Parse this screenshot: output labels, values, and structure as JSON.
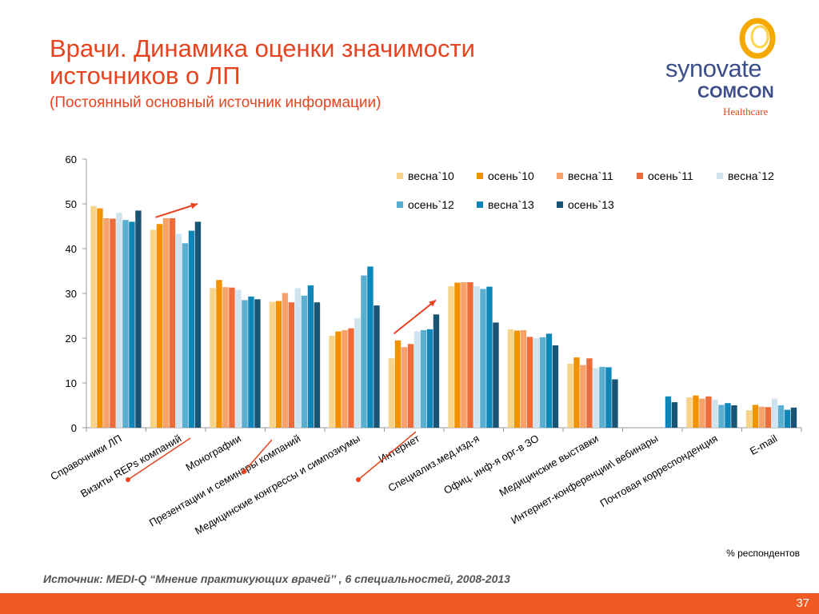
{
  "slide": {
    "title": "Врачи. Динамика оценки значимости источников о ЛП",
    "subtitle": "(Постоянный основный источник информации)",
    "logo": {
      "line1": "synovate",
      "line2": "COMCON",
      "line3": "Healthcare"
    },
    "unit_note": "% респондентов",
    "source": "Источник: MEDI-Q “Мнение практикующих врачей’’ , 6 специальностей,  2008-2013",
    "page_number": "37"
  },
  "colors": {
    "accent": "#e8431f",
    "footer": "#f15a22",
    "brand": "#3d4f8a",
    "series": [
      "#f8d48a",
      "#f39200",
      "#f6a26a",
      "#ee6b3a",
      "#cfe4ee",
      "#5aaed0",
      "#0e86b8",
      "#1a5474"
    ]
  },
  "chart_data": {
    "type": "bar",
    "categories": [
      "Справочники ЛП",
      "Визиты REPs компаний",
      "Монографии",
      "Презентации и семинары компаний",
      "Медицинские конгрессы и симпозиумы",
      "Интернет",
      "Специализ.мед.изд-я",
      "Офиц. инф-я орг-в ЗО",
      "Медицинские выставки",
      "Интернет-конференции\\ вебинары",
      "Почтовая корреспонденция",
      "E-mail"
    ],
    "series": [
      {
        "name": "весна`10",
        "values": [
          49.5,
          44.2,
          31.2,
          28.1,
          20.5,
          15.5,
          31.6,
          22.0,
          14.3,
          null,
          6.8,
          3.9
        ]
      },
      {
        "name": "осень`10",
        "values": [
          49.0,
          45.5,
          33.0,
          28.3,
          21.5,
          19.5,
          32.4,
          21.7,
          15.7,
          null,
          7.2,
          5.1
        ]
      },
      {
        "name": "весна`11",
        "values": [
          46.8,
          46.8,
          31.4,
          30.1,
          21.8,
          18.0,
          32.5,
          21.8,
          14.0,
          null,
          6.5,
          4.7
        ]
      },
      {
        "name": "осень`11",
        "values": [
          46.7,
          46.8,
          31.3,
          28.0,
          22.2,
          18.7,
          32.5,
          20.3,
          15.5,
          null,
          7.0,
          4.6
        ]
      },
      {
        "name": "весна`12",
        "values": [
          48.0,
          43.3,
          30.8,
          31.2,
          24.5,
          21.5,
          31.6,
          20.0,
          13.3,
          null,
          6.3,
          6.5
        ]
      },
      {
        "name": "осень`12",
        "values": [
          46.4,
          41.2,
          28.5,
          29.5,
          34.0,
          21.8,
          31.0,
          20.2,
          13.6,
          null,
          5.1,
          5.0
        ]
      },
      {
        "name": "весна`13",
        "values": [
          46.0,
          44.0,
          29.3,
          31.8,
          36.0,
          22.0,
          31.5,
          21.0,
          13.5,
          7.0,
          5.5,
          4.0
        ]
      },
      {
        "name": "осень`13",
        "values": [
          48.5,
          46.0,
          28.7,
          28.0,
          27.3,
          25.3,
          23.5,
          18.4,
          10.8,
          5.7,
          5.0,
          4.5
        ]
      }
    ],
    "ylim": [
      0,
      60
    ],
    "yticks": [
      0,
      10,
      20,
      30,
      40,
      50,
      60
    ],
    "ylabel": "",
    "xlabel": "",
    "grid": false,
    "legend_position": "top-right",
    "annotations": [
      {
        "type": "trend-arrow",
        "category": "Визиты REPs компаний",
        "from": 47,
        "to": 50
      },
      {
        "type": "trend-arrow",
        "category": "Интернет",
        "from": 21,
        "to": 28.5
      }
    ]
  }
}
